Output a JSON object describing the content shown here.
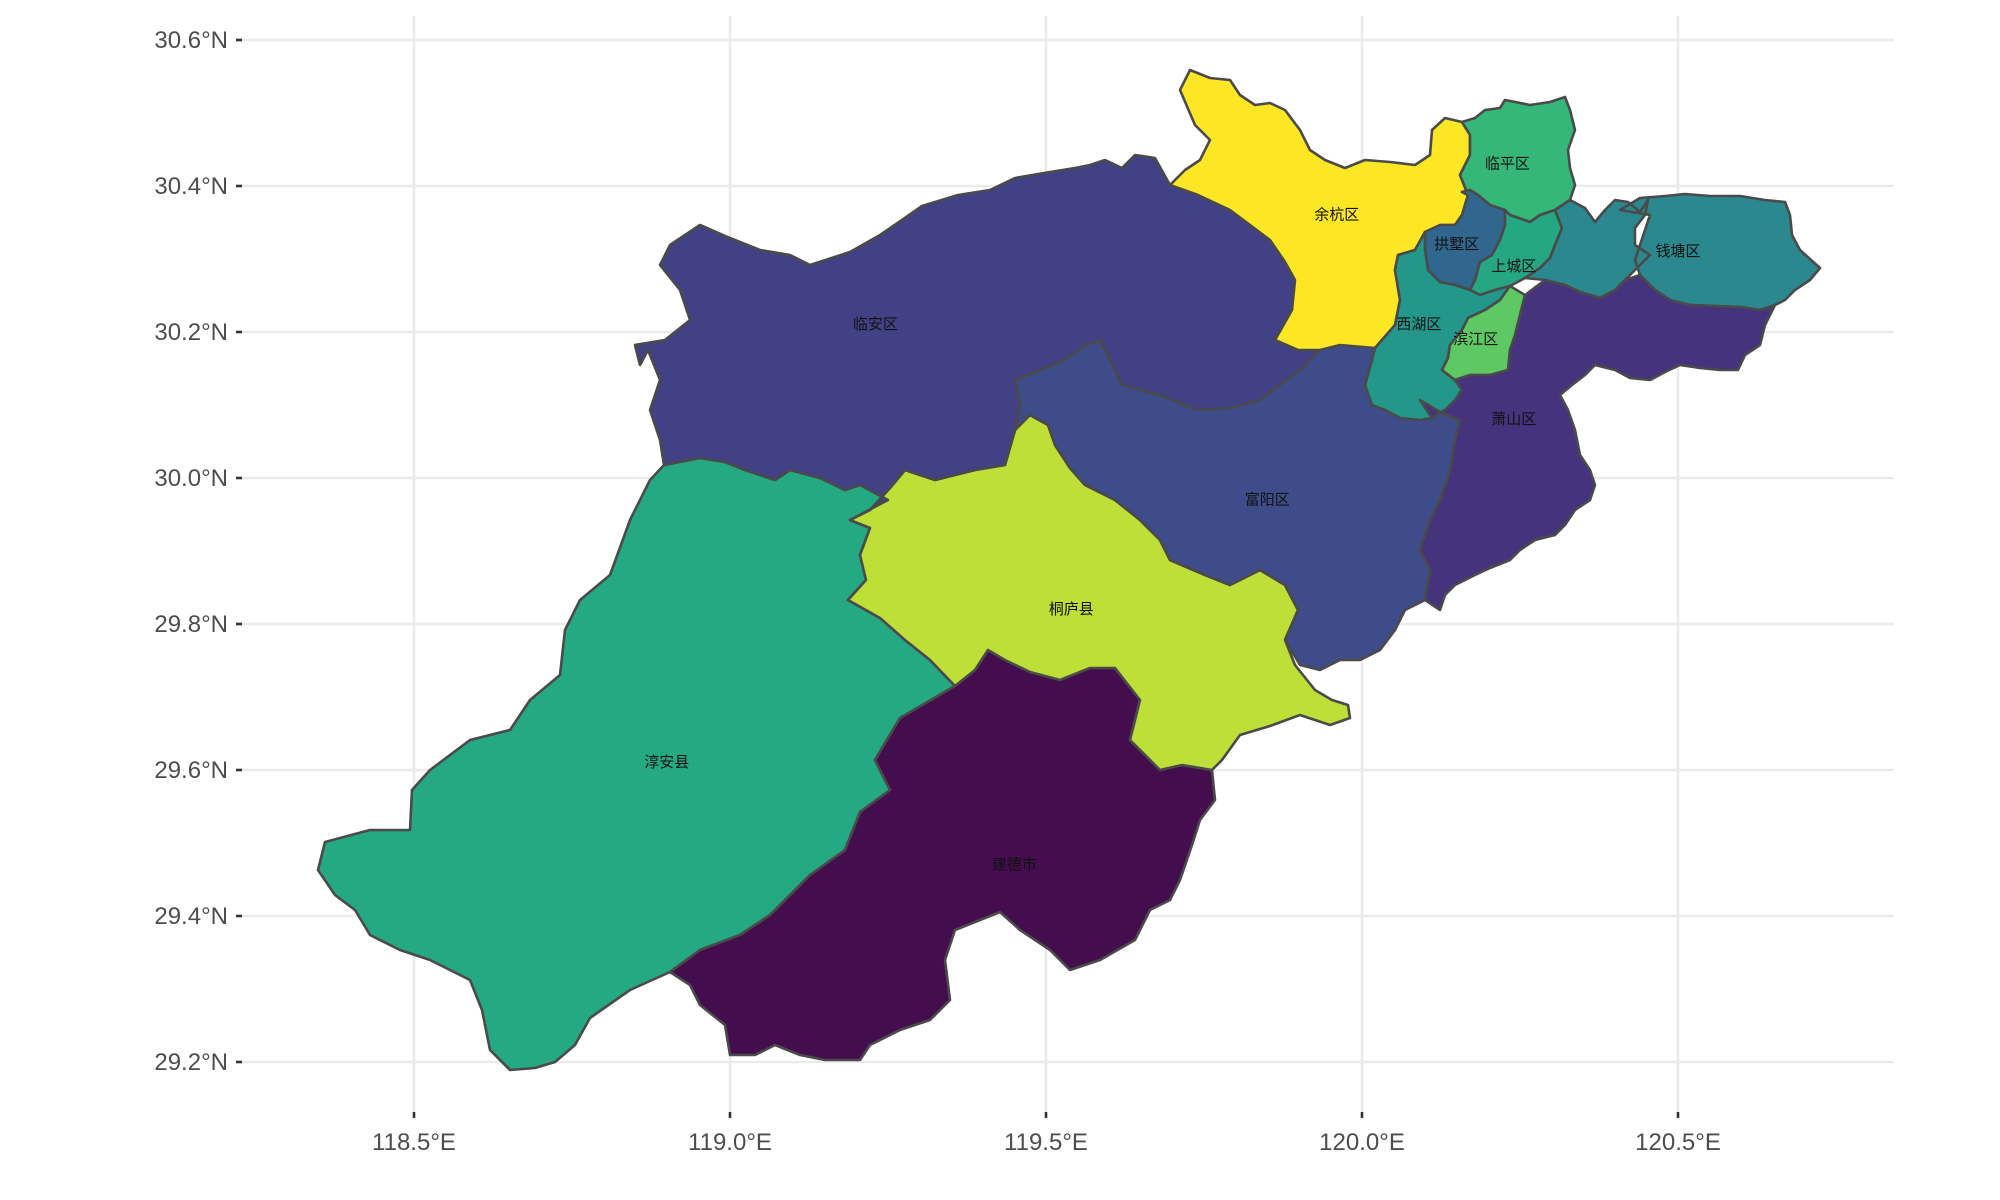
{
  "map": {
    "type": "choropleth",
    "lon_range": [
      118.3,
      120.85
    ],
    "lat_range": [
      29.12,
      30.64
    ],
    "gridlines": true,
    "x_ticks": [
      {
        "value": 118.5,
        "label": "118.5°E"
      },
      {
        "value": 119.0,
        "label": "119.0°E"
      },
      {
        "value": 119.5,
        "label": "119.5°E"
      },
      {
        "value": 120.0,
        "label": "120.0°E"
      },
      {
        "value": 120.5,
        "label": "120.5°E"
      }
    ],
    "y_ticks": [
      {
        "value": 29.2,
        "label": "29.2°N"
      },
      {
        "value": 29.4,
        "label": "29.4°N"
      },
      {
        "value": 29.6,
        "label": "29.6°N"
      },
      {
        "value": 29.8,
        "label": "29.8°N"
      },
      {
        "value": 30.0,
        "label": "30.0°N"
      },
      {
        "value": 30.2,
        "label": "30.2°N"
      },
      {
        "value": 30.4,
        "label": "30.4°N"
      },
      {
        "value": 30.6,
        "label": "30.6°N"
      }
    ],
    "regions": [
      {
        "id": "jiande",
        "name": "建德市",
        "color": "#440e4e",
        "lon": 119.45,
        "lat": 29.47
      },
      {
        "id": "xiaoshan",
        "name": "萧山区",
        "color": "#46337e",
        "lon": 120.24,
        "lat": 30.08
      },
      {
        "id": "linan",
        "name": "临安区",
        "color": "#424186",
        "lon": 119.23,
        "lat": 30.21
      },
      {
        "id": "fuyang",
        "name": "富阳区",
        "color": "#3e4c8a",
        "lon": 119.85,
        "lat": 29.97
      },
      {
        "id": "gongshu",
        "name": "拱墅区",
        "color": "#31678e",
        "lon": 120.15,
        "lat": 30.32
      },
      {
        "id": "qiantang",
        "name": "钱塘区",
        "color": "#2a888e",
        "lon": 120.5,
        "lat": 30.31
      },
      {
        "id": "xihu",
        "name": "西湖区",
        "color": "#22978a",
        "lon": 120.09,
        "lat": 30.21
      },
      {
        "id": "chunan",
        "name": "淳安县",
        "color": "#25a982",
        "lon": 118.9,
        "lat": 29.61
      },
      {
        "id": "shangcheng",
        "name": "上城区",
        "color": "#26a784",
        "lon": 120.24,
        "lat": 30.29
      },
      {
        "id": "linping",
        "name": "临平区",
        "color": "#35b779",
        "lon": 120.23,
        "lat": 30.43
      },
      {
        "id": "binjiang",
        "name": "滨江区",
        "color": "#5ec962",
        "lon": 120.18,
        "lat": 30.19
      },
      {
        "id": "tonglu",
        "name": "桐庐县",
        "color": "#bddf38",
        "lon": 119.54,
        "lat": 29.82
      },
      {
        "id": "yuhang",
        "name": "余杭区",
        "color": "#fde725",
        "lon": 119.96,
        "lat": 30.36
      }
    ]
  }
}
